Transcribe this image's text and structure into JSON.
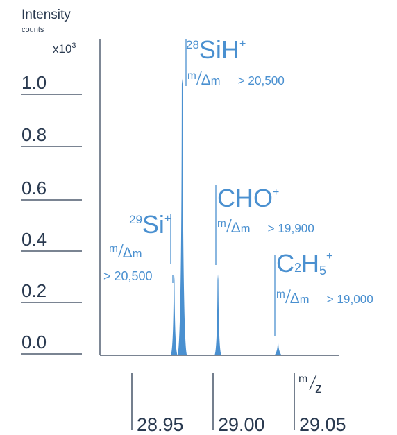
{
  "chart_data": {
    "type": "line",
    "title": "",
    "ylabel": "Intensity",
    "ylabel_unit": "counts",
    "y_multiplier": "x10",
    "y_multiplier_exp": "3",
    "xlabel_num": "m",
    "xlabel_den": "z",
    "ylim": [
      0,
      1.1
    ],
    "y_ticks": [
      "1.0",
      "0.8",
      "0.6",
      "0.4",
      "0.2",
      "0.0"
    ],
    "y_tick_values": [
      1.0,
      0.8,
      0.6,
      0.4,
      0.2,
      0.0
    ],
    "x_ticks": [
      "28.95",
      "29.00",
      "29.05"
    ],
    "x_tick_values": [
      28.95,
      29.0,
      29.05
    ],
    "xlim": [
      28.9,
      29.065
    ],
    "peaks": [
      {
        "x": 28.976,
        "y": 0.31,
        "label_pre": "29",
        "label": "Si",
        "label_post": "+",
        "res_label": "> 20,500"
      },
      {
        "x": 28.981,
        "y": 1.06,
        "label_pre": "28",
        "label": "SiH",
        "label_post": "+",
        "res_label": "> 20,500"
      },
      {
        "x": 29.003,
        "y": 0.31,
        "label_pre": "",
        "label": "CHO",
        "label_post": "+",
        "res_label": "> 19,900"
      },
      {
        "x": 29.04,
        "y": 0.06,
        "label_pre": "",
        "label": "C",
        "label_sub": "2",
        "label_h": "H",
        "label_sub2": "5",
        "label_post": "+",
        "res_label": "> 19,000"
      }
    ],
    "res_num": "m",
    "res_den": "Δm"
  },
  "colors": {
    "peak": "#4a90d0",
    "axis": "#2a3a50"
  }
}
